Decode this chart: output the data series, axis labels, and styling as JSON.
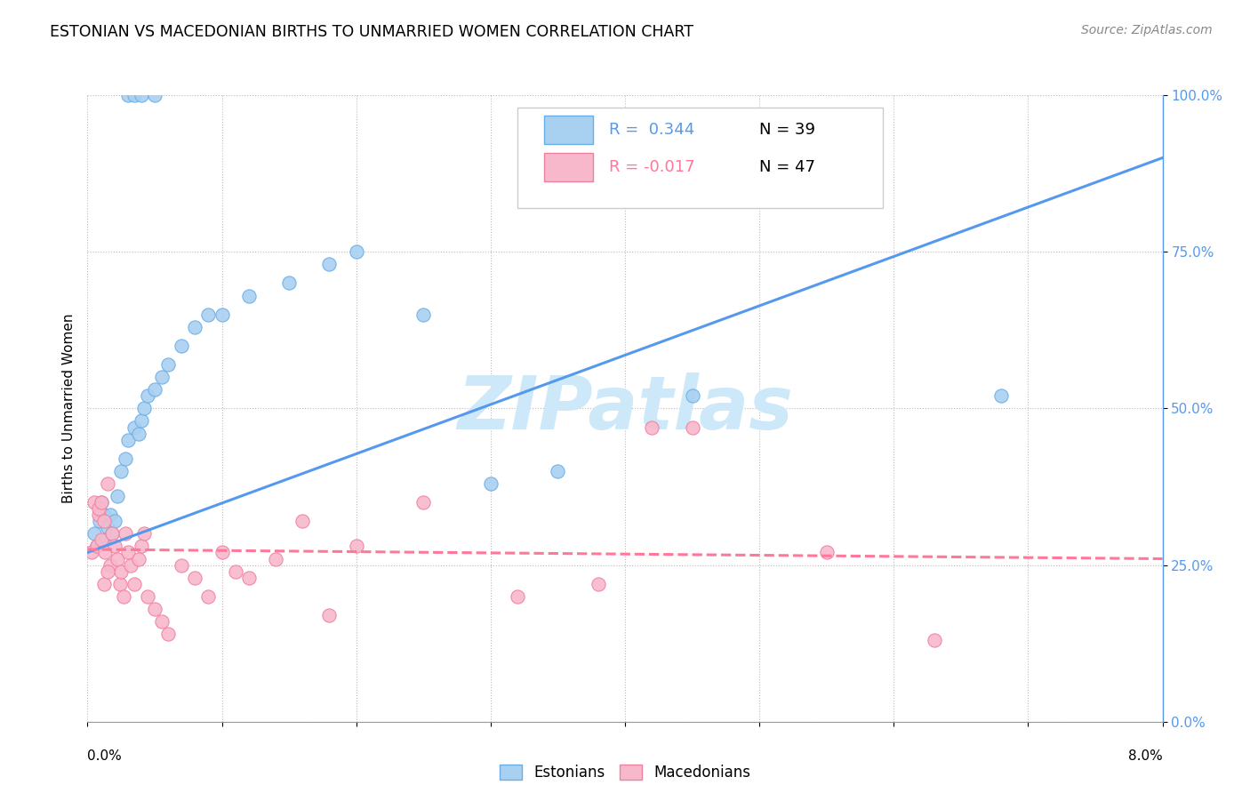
{
  "title": "ESTONIAN VS MACEDONIAN BIRTHS TO UNMARRIED WOMEN CORRELATION CHART",
  "source": "Source: ZipAtlas.com",
  "ylabel": "Births to Unmarried Women",
  "xlim": [
    0.0,
    8.0
  ],
  "ylim": [
    0.0,
    100.0
  ],
  "yticks": [
    0,
    25,
    50,
    75,
    100
  ],
  "ytick_labels": [
    "0.0%",
    "25.0%",
    "50.0%",
    "75.0%",
    "100.0%"
  ],
  "estonian_dot_color": "#a8d0f0",
  "estonian_dot_edge": "#6aaee8",
  "macedonian_dot_color": "#f8b8cc",
  "macedonian_dot_edge": "#f080a0",
  "estonian_line_color": "#5599ee",
  "macedonian_line_color": "#ff7799",
  "legend_r_estonian": "R =  0.344",
  "legend_n_estonian": "N = 39",
  "legend_r_macedonian": "R = -0.017",
  "legend_n_macedonian": "N = 47",
  "watermark_text": "ZIPatlas",
  "watermark_color": "#cde8f8",
  "estonian_x": [
    0.05,
    0.07,
    0.09,
    0.1,
    0.12,
    0.13,
    0.15,
    0.17,
    0.18,
    0.2,
    0.22,
    0.25,
    0.28,
    0.3,
    0.35,
    0.38,
    0.4,
    0.42,
    0.45,
    0.5,
    0.55,
    0.6,
    0.7,
    0.8,
    0.9,
    1.0,
    1.2,
    1.5,
    1.8,
    2.0,
    2.5,
    3.0,
    3.5,
    4.5,
    6.8,
    0.3,
    0.35,
    0.4,
    0.5
  ],
  "estonian_y": [
    30,
    28,
    32,
    35,
    33,
    29,
    31,
    33,
    30,
    32,
    36,
    40,
    42,
    45,
    47,
    46,
    48,
    50,
    52,
    53,
    55,
    57,
    60,
    63,
    65,
    65,
    68,
    70,
    73,
    75,
    65,
    38,
    40,
    52,
    52,
    100,
    100,
    100,
    100
  ],
  "macedonian_x": [
    0.03,
    0.05,
    0.07,
    0.08,
    0.1,
    0.12,
    0.13,
    0.15,
    0.17,
    0.18,
    0.2,
    0.22,
    0.24,
    0.25,
    0.27,
    0.28,
    0.3,
    0.32,
    0.35,
    0.38,
    0.4,
    0.42,
    0.45,
    0.5,
    0.55,
    0.6,
    0.7,
    0.8,
    0.9,
    1.0,
    1.1,
    1.2,
    1.4,
    1.6,
    1.8,
    2.0,
    2.5,
    3.2,
    3.8,
    4.2,
    4.5,
    5.5,
    6.3,
    0.08,
    0.1,
    0.12,
    0.15
  ],
  "macedonian_y": [
    27,
    35,
    28,
    33,
    29,
    32,
    27,
    38,
    25,
    30,
    28,
    26,
    22,
    24,
    20,
    30,
    27,
    25,
    22,
    26,
    28,
    30,
    20,
    18,
    16,
    14,
    25,
    23,
    20,
    27,
    24,
    23,
    26,
    32,
    17,
    28,
    35,
    20,
    22,
    47,
    47,
    27,
    13,
    34,
    35,
    22,
    24
  ],
  "estonian_line_x": [
    0.0,
    8.0
  ],
  "estonian_line_y": [
    27.0,
    90.0
  ],
  "macedonian_line_x": [
    0.0,
    8.0
  ],
  "macedonian_line_y": [
    27.5,
    26.0
  ]
}
